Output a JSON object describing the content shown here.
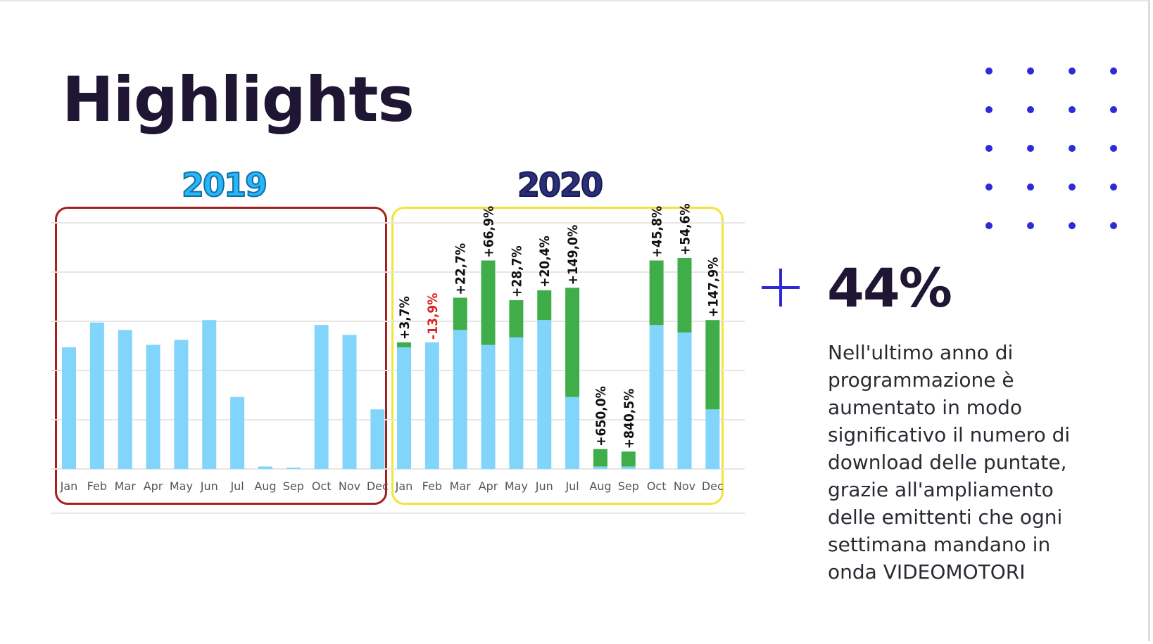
{
  "page": {
    "title": "Highlights",
    "accent_color": "#2d2bd8",
    "stat_prefix_icon": "plus-icon",
    "stat_value": "44%",
    "description": "Nell'ultimo anno di programmazione è aumentato in modo significativo il numero di download delle puntate, grazie all'ampliamento delle emittenti che ogni settimana mandano in onda VIDEOMOTORI"
  },
  "chart_data": [
    {
      "type": "bar",
      "title": "2019",
      "title_color": "#29b6f6",
      "frame_color": "#a51f1f",
      "categories": [
        "Jan",
        "Feb",
        "Mar",
        "Apr",
        "May",
        "Jun",
        "Jul",
        "Aug",
        "Sep",
        "Oct",
        "Nov",
        "Dec"
      ],
      "values": [
        49,
        59,
        56,
        50,
        52,
        60,
        29,
        1,
        0.5,
        58,
        54,
        24
      ],
      "ylim": [
        0,
        100
      ],
      "grid": true,
      "bar_color": "#81d4fa"
    },
    {
      "type": "bar",
      "title": "2020",
      "title_color": "#2b2f7a",
      "frame_color": "#f2e43a",
      "categories": [
        "Jan",
        "Feb",
        "Mar",
        "Apr",
        "May",
        "Jun",
        "Jul",
        "Aug",
        "Sep",
        "Oct",
        "Nov",
        "Dec"
      ],
      "series": [
        {
          "values": [
            49,
            51,
            56,
            50,
            53,
            60,
            29,
            1,
            1,
            58,
            55,
            24
          ],
          "color": "#81d4fa"
        },
        {
          "values": [
            2,
            0,
            13,
            34,
            15,
            12,
            44,
            7,
            6,
            26,
            30,
            36
          ],
          "color": "#3fae49"
        }
      ],
      "labels": [
        "+3,7%",
        "-13,9%",
        "+22,7%",
        "+66,9%",
        "+28,7%",
        "+20,4%",
        "+149,0%",
        "+650,0%",
        "+840,5%",
        "+45,8%",
        "+54,6%",
        "+147,9%"
      ],
      "label_colors": [
        "#111111",
        "#e02424",
        "#111111",
        "#111111",
        "#111111",
        "#111111",
        "#111111",
        "#111111",
        "#111111",
        "#111111",
        "#111111",
        "#111111"
      ],
      "ylim": [
        0,
        100
      ],
      "grid": true
    }
  ]
}
